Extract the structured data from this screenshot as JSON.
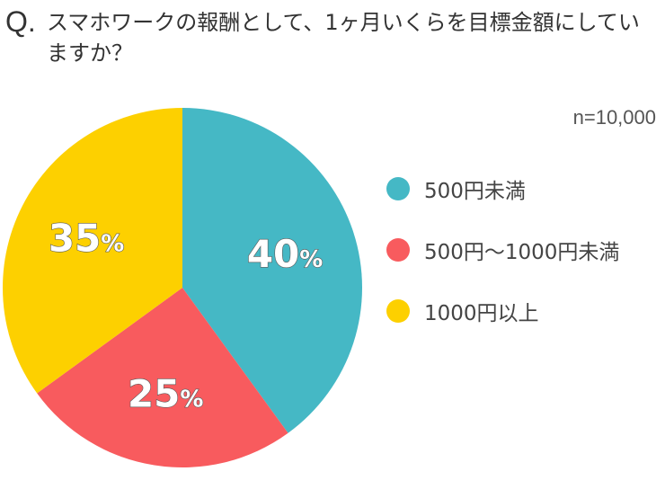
{
  "question": {
    "mark": "Q.",
    "text": "スマホワークの報酬として、1ヶ月いくらを目標金額にしていますか？"
  },
  "sample_size": "n=10,000",
  "chart_data": {
    "type": "pie",
    "categories": [
      "500円未満",
      "500円〜1000円未満",
      "1000円以上"
    ],
    "values": [
      40,
      25,
      35
    ],
    "labels": [
      "40",
      "25",
      "35"
    ],
    "unit": "%",
    "colors": [
      "#45b8c5",
      "#f85b5e",
      "#fdd000"
    ],
    "start": "12 o'clock",
    "direction": "clockwise",
    "legend_position": "right"
  },
  "legend": [
    {
      "label": "500円未満",
      "color": "#45b8c5"
    },
    {
      "label": "500円〜1000円未満",
      "color": "#f85b5e"
    },
    {
      "label": "1000円以上",
      "color": "#fdd000"
    }
  ]
}
